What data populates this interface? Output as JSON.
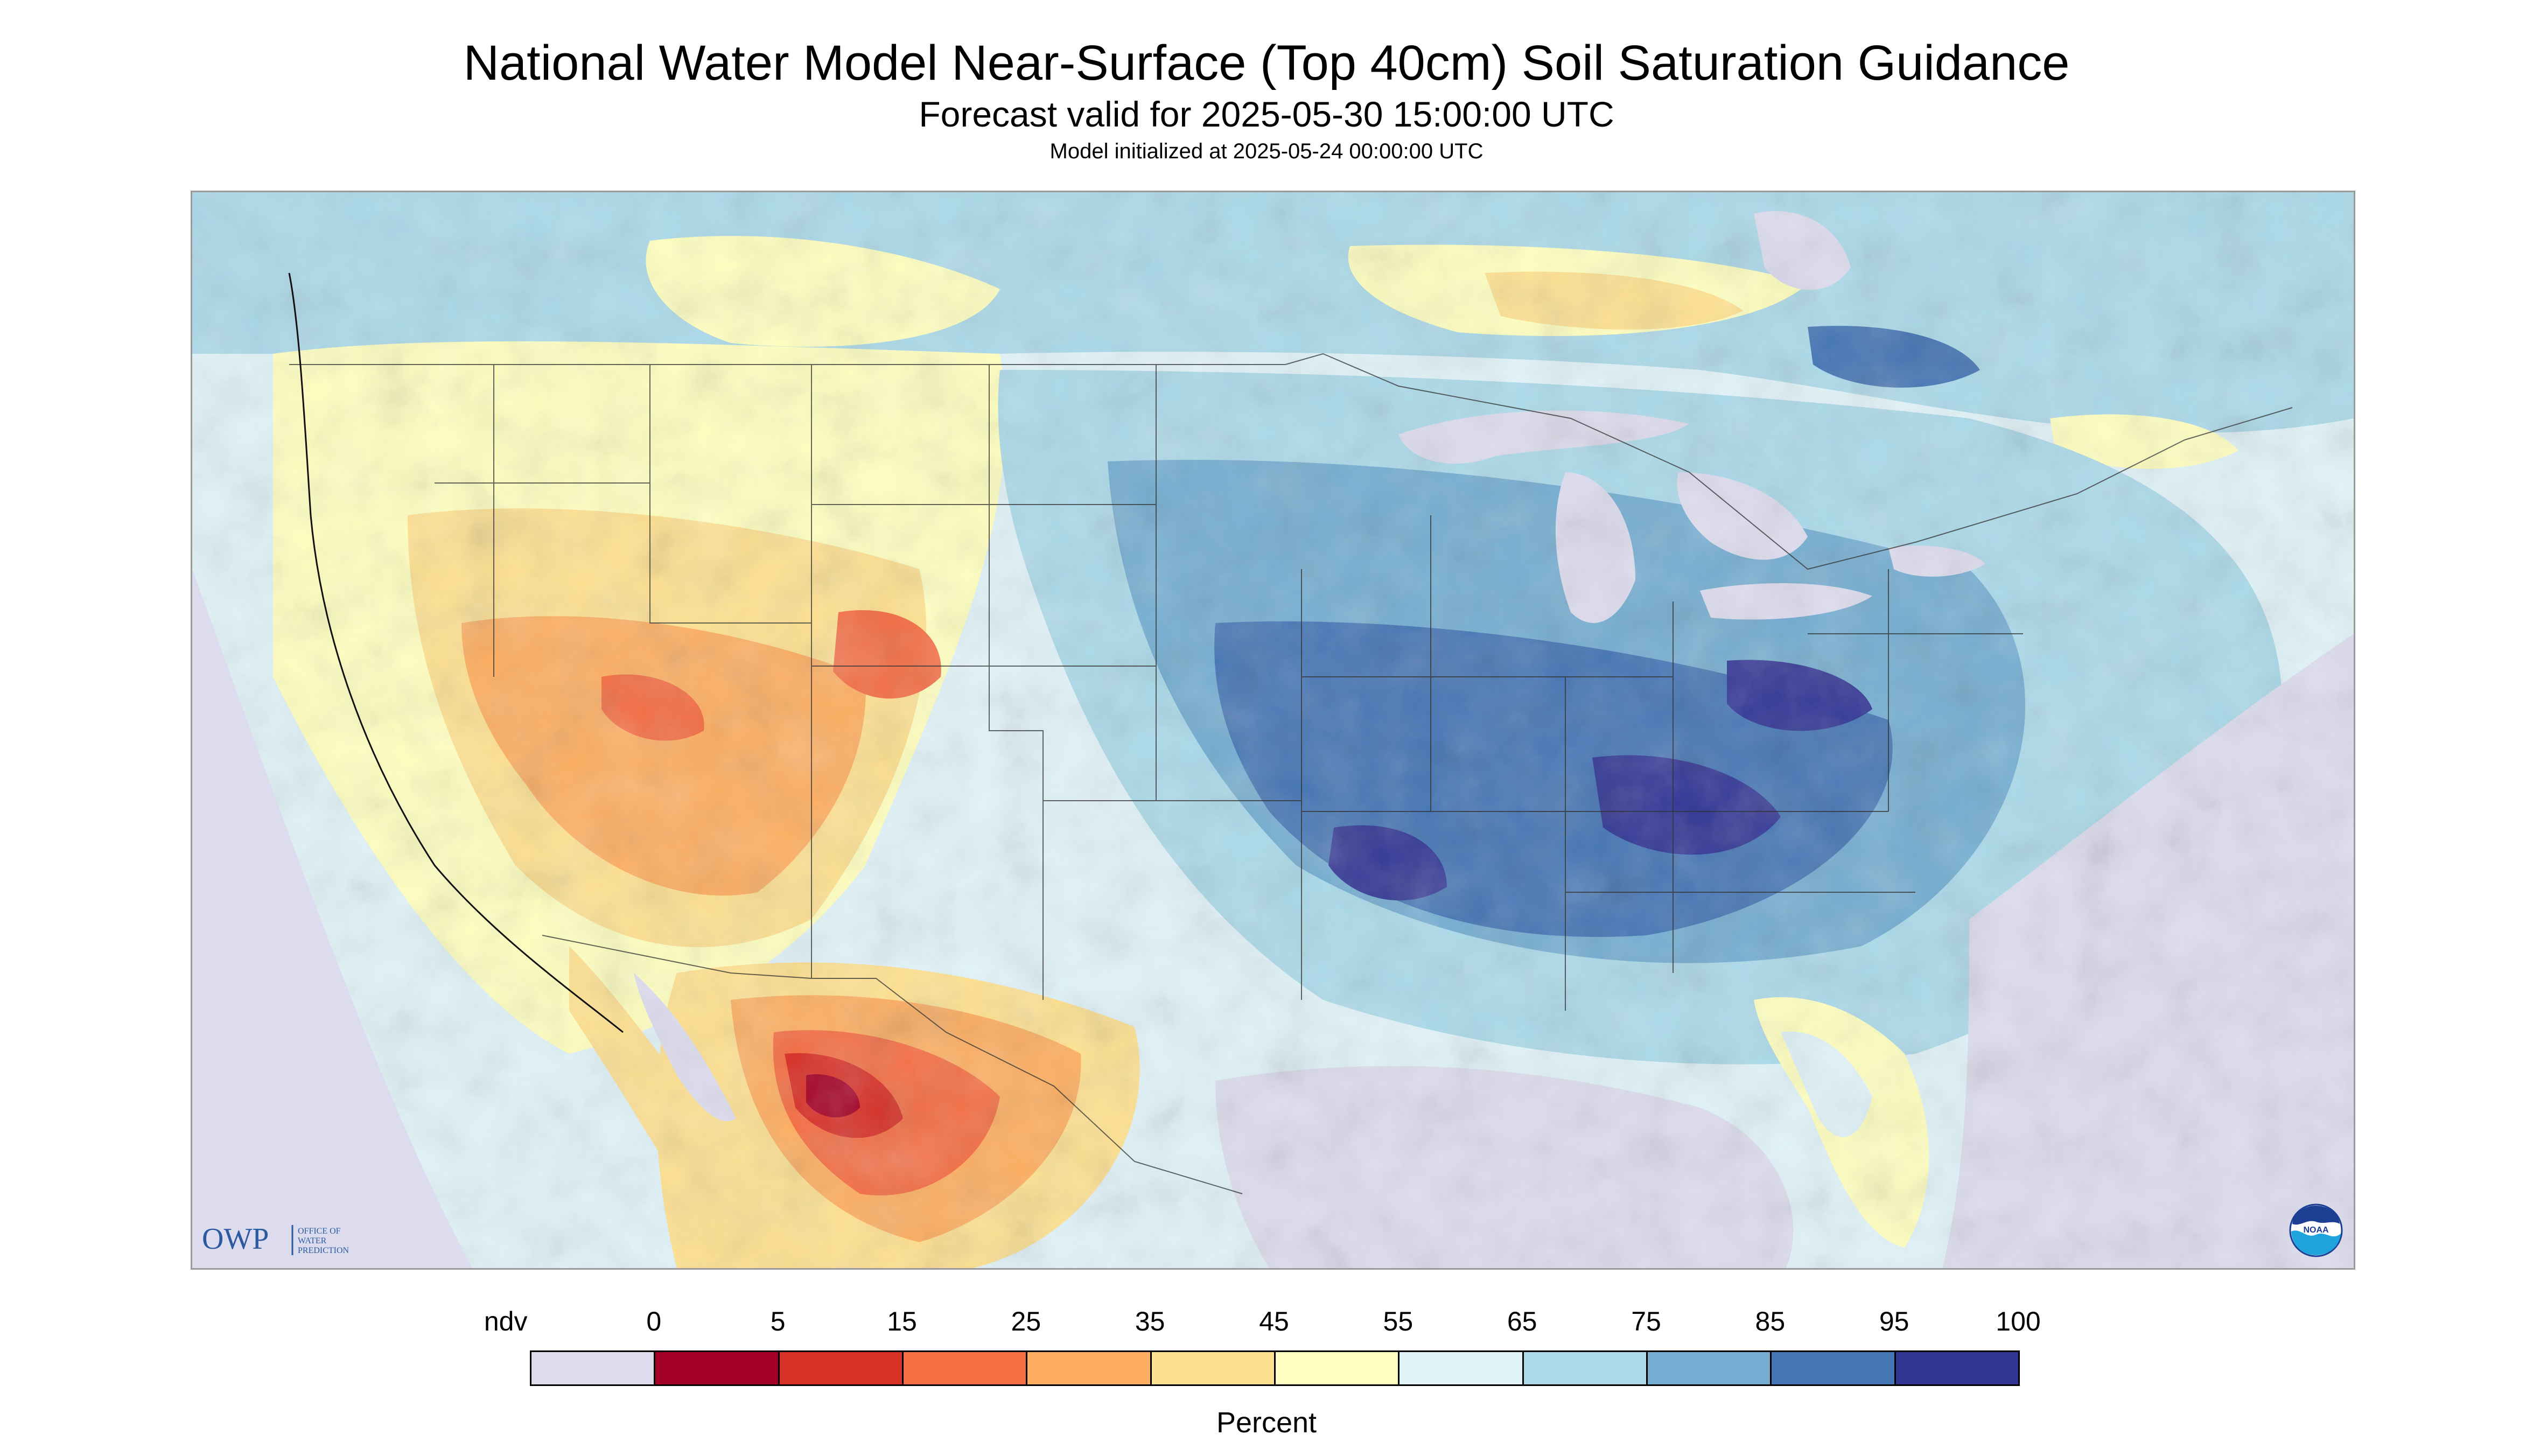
{
  "header": {
    "title": "National Water Model Near-Surface (Top 40cm) Soil Saturation Guidance",
    "subtitle": "Forecast valid for 2025-05-30 15:00:00 UTC",
    "init": "Model initialized at 2025-05-24 00:00:00 UTC"
  },
  "map": {
    "region": "Contiguous United States",
    "nodata_color": "#dcdcee",
    "water_color": "#dcdcee"
  },
  "logos": {
    "owp_mark": "OWP",
    "owp_text": [
      "OFFICE OF",
      "WATER",
      "PREDICTION"
    ],
    "noaa_mark": "NOAA"
  },
  "legend": {
    "labels": [
      "ndv",
      "0",
      "5",
      "15",
      "25",
      "35",
      "45",
      "55",
      "65",
      "75",
      "85",
      "95",
      "100"
    ],
    "colors": [
      "#dcdcee",
      "#a50026",
      "#d73027",
      "#f46d43",
      "#fdae61",
      "#fee090",
      "#ffffbf",
      "#e0f3f8",
      "#abd9e9",
      "#74add1",
      "#4575b4",
      "#313695"
    ],
    "unit": "Percent"
  }
}
